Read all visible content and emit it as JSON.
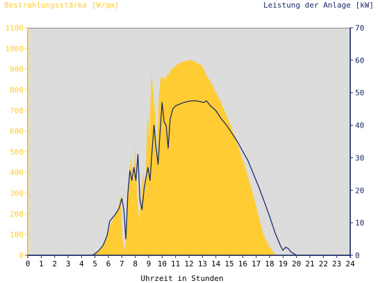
{
  "chart_data": {
    "type": "area",
    "title_left": "Bestrahlungsstärke [W/qm]",
    "title_right": "Leistung der Anlage [kW]",
    "xlabel": "Uhrzeit in Stunden",
    "xlim": [
      0,
      24
    ],
    "x_ticks": [
      "0",
      "1",
      "2",
      "3",
      "4",
      "5",
      "6",
      "7",
      "8",
      "9",
      "10",
      "11",
      "12",
      "13",
      "14",
      "15",
      "16",
      "17",
      "18",
      "19",
      "20",
      "21",
      "22",
      "23",
      "24"
    ],
    "y_left_lim": [
      0,
      1100
    ],
    "y_left_ticks": [
      "0",
      "100",
      "200",
      "300",
      "400",
      "500",
      "600",
      "700",
      "800",
      "900",
      "1000",
      "1100"
    ],
    "y_right_lim": [
      0,
      70
    ],
    "y_right_ticks": [
      "0",
      "10",
      "20",
      "30",
      "40",
      "50",
      "60",
      "70"
    ],
    "grid": false,
    "series": [
      {
        "name": "Bestrahlungsstärke [W/qm]",
        "axis": "left",
        "color": "#ffcc33",
        "x": [
          0,
          4.8,
          5.0,
          5.3,
          5.6,
          5.9,
          6.1,
          6.4,
          6.7,
          6.9,
          7.05,
          7.25,
          7.4,
          7.55,
          7.7,
          7.85,
          8.0,
          8.15,
          8.3,
          8.45,
          8.6,
          8.75,
          8.9,
          9.05,
          9.2,
          9.35,
          9.5,
          9.6,
          9.75,
          9.9,
          10.0,
          10.1,
          10.25,
          10.4,
          10.5,
          10.6,
          10.75,
          10.9,
          11.1,
          11.3,
          11.5,
          11.8,
          12.0,
          12.3,
          12.6,
          12.9,
          13.1,
          13.3,
          13.6,
          13.9,
          14.3,
          14.7,
          15.1,
          15.5,
          15.9,
          16.3,
          16.7,
          17.1,
          17.5,
          17.9,
          18.3,
          18.6,
          18.9,
          19.05,
          19.2,
          19.4,
          19.6,
          19.9,
          20.3,
          21,
          24
        ],
        "y": [
          0,
          0,
          8,
          20,
          45,
          90,
          140,
          180,
          215,
          290,
          80,
          15,
          220,
          410,
          470,
          350,
          530,
          270,
          160,
          300,
          400,
          300,
          700,
          560,
          880,
          780,
          660,
          470,
          760,
          860,
          860,
          860,
          850,
          880,
          870,
          890,
          900,
          910,
          920,
          930,
          935,
          940,
          945,
          940,
          930,
          920,
          900,
          870,
          840,
          800,
          750,
          690,
          630,
          560,
          480,
          400,
          310,
          210,
          110,
          50,
          10,
          0,
          0,
          0,
          0,
          0,
          0,
          0,
          0,
          0,
          0
        ]
      },
      {
        "name": "Leistung der Anlage [kW]",
        "axis": "right",
        "color": "#1a2a66",
        "x": [
          0,
          4.8,
          5.0,
          5.3,
          5.6,
          5.9,
          6.1,
          6.3,
          6.5,
          6.8,
          7.0,
          7.15,
          7.3,
          7.45,
          7.6,
          7.75,
          7.9,
          8.05,
          8.2,
          8.35,
          8.5,
          8.65,
          8.8,
          8.95,
          9.1,
          9.25,
          9.4,
          9.55,
          9.7,
          9.85,
          10.0,
          10.15,
          10.3,
          10.45,
          10.6,
          10.8,
          11.0,
          11.3,
          11.6,
          11.9,
          12.2,
          12.5,
          12.8,
          13.1,
          13.3,
          13.6,
          14.0,
          14.4,
          14.8,
          15.2,
          15.6,
          16.0,
          16.4,
          16.8,
          17.2,
          17.6,
          18.0,
          18.4,
          18.8,
          19.0,
          19.2,
          19.4,
          19.6,
          19.8,
          20.0,
          20.3,
          20.6,
          24
        ],
        "y": [
          0,
          0,
          0.5,
          1.5,
          3,
          6,
          10.5,
          11.5,
          12.5,
          14.5,
          17.5,
          14,
          5,
          19,
          26,
          23,
          27,
          23,
          31,
          17,
          14,
          20,
          24,
          27,
          23,
          32,
          40,
          33,
          28,
          38,
          47,
          41,
          40,
          33,
          42,
          45,
          46,
          46.5,
          47,
          47.3,
          47.5,
          47.5,
          47.3,
          47,
          47.5,
          46,
          44.5,
          42,
          40,
          37.5,
          35,
          32,
          29,
          25,
          21,
          16.5,
          12,
          7,
          3,
          1.5,
          2.5,
          2,
          1,
          0.5,
          0,
          0,
          0,
          0
        ]
      }
    ]
  }
}
